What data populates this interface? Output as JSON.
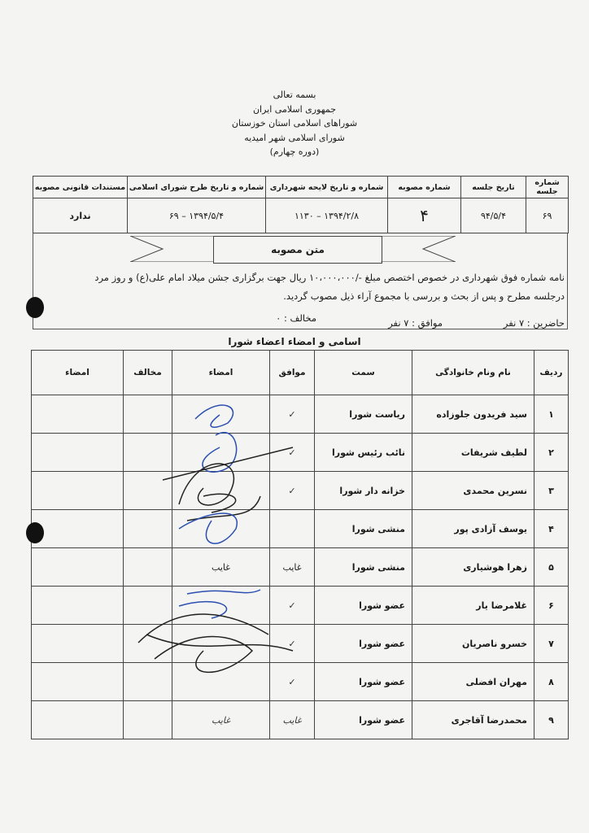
{
  "header": {
    "line1": "بسمه تعالی",
    "line2": "جمهوری اسلامی ایران",
    "line3": "شوراهای اسلامی استان خوزستان",
    "line4": "شورای اسلامی شهر امیدیه",
    "line5": "(دوره چهارم)"
  },
  "session_table": {
    "headers": [
      "شماره جلسه",
      "تاریخ جلسه",
      "شماره مصوبه",
      "شماره و تاریخ لایحه شهرداری",
      "شماره و تاریخ طرح شورای اسلامی",
      "مستندات قانونی مصوبه"
    ],
    "values": [
      "۶۹",
      "۹۴/۵/۴",
      "۴",
      "۱۳۹۴/۲/۸ – ۱۱۳۰",
      "۱۳۹۴/۵/۴ – ۶۹",
      "ندارد"
    ]
  },
  "resolution": {
    "title": "متن مصوبه",
    "line1": "نامه شماره فوق شهرداری در خصوص اختصص مبلغ -/۱۰،۰۰۰،۰۰۰ ریال جهت برگزاری جشن میلاد امام علی(ع) و روز مرد",
    "line2": "درجلسه مطرح و پس از بحث و بررسی با مجموع آراء ذیل مصوب گردید.",
    "present": "حاضرین : ۷ نفر",
    "agree": "موافق : ۷ نفر",
    "oppose": "مخالف : ۰"
  },
  "members": {
    "title": "اسامی و امضاء اعضاء شورا",
    "headers": [
      "ردیف",
      "نام ونام خانوادگی",
      "سمت",
      "موافق",
      "امضاء",
      "مخالف",
      "امضاء"
    ],
    "rows": [
      {
        "n": "۱",
        "name": "سید فریدون جلوزاده",
        "role": "ریاست شورا",
        "agree": "✓",
        "sign": ""
      },
      {
        "n": "۲",
        "name": "لطیف شریفات",
        "role": "نائب رئیس شورا",
        "agree": "✓",
        "sign": ""
      },
      {
        "n": "۳",
        "name": "نسرین محمدی",
        "role": "خزانه دار شورا",
        "agree": "✓",
        "sign": ""
      },
      {
        "n": "۴",
        "name": "یوسف آزادی پور",
        "role": "منشی شورا",
        "agree": "",
        "sign": ""
      },
      {
        "n": "۵",
        "name": "زهرا هوشیاری",
        "role": "منشی شورا",
        "agree": "غایب",
        "sign": "غایب"
      },
      {
        "n": "۶",
        "name": "غلامرضا یار",
        "role": "عضو شورا",
        "agree": "✓",
        "sign": ""
      },
      {
        "n": "۷",
        "name": "خسرو ناصریان",
        "role": "عضو شورا",
        "agree": "✓",
        "sign": ""
      },
      {
        "n": "۸",
        "name": "مهران افضلی",
        "role": "عضو شورا",
        "agree": "✓",
        "sign": ""
      },
      {
        "n": "۹",
        "name": "محمدرضا آقاجری",
        "role": "عضو شورا",
        "agree": "غایب",
        "sign": "غایب"
      }
    ]
  },
  "colors": {
    "paper": "#f4f4f2",
    "ink": "#1a1a1a",
    "signature_blue": "#2a4fb0",
    "signature_black": "#222222"
  }
}
